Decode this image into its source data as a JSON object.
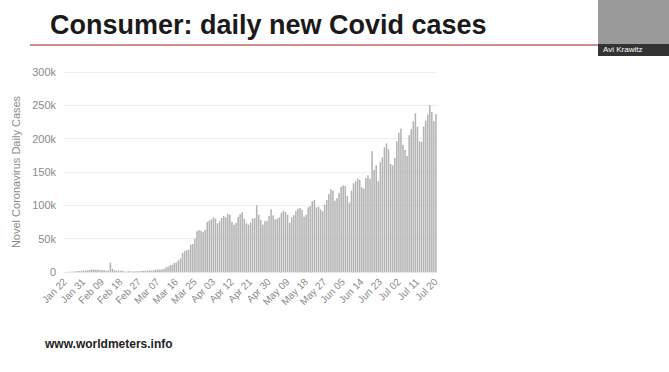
{
  "chart_data": {
    "type": "bar",
    "title": "Consumer: daily new Covid cases",
    "y_label": "Novel Coronavirus Daily Cases",
    "source": "www.worldmeters.info",
    "speaker": "Avi Krawitz",
    "color": "#b3b3b3",
    "grid": true,
    "ylim": [
      0,
      300000
    ],
    "yticks": [
      0,
      {
        "value": 50000,
        "label": "50k"
      },
      {
        "value": 100000,
        "label": "100k"
      },
      {
        "value": 150000,
        "label": "150k"
      },
      {
        "value": 200000,
        "label": "200k"
      },
      {
        "value": 250000,
        "label": "250k"
      },
      {
        "value": 300000,
        "label": "300k"
      }
    ],
    "categories": [
      "Jan 22",
      null,
      null,
      null,
      null,
      null,
      null,
      null,
      null,
      "Jan 31",
      null,
      null,
      null,
      null,
      null,
      null,
      null,
      null,
      "Feb 09",
      null,
      null,
      null,
      null,
      null,
      null,
      null,
      null,
      "Feb 18",
      null,
      null,
      null,
      null,
      null,
      null,
      null,
      null,
      "Feb 27",
      null,
      null,
      null,
      null,
      null,
      null,
      null,
      null,
      "Mar 07",
      null,
      null,
      null,
      null,
      null,
      null,
      null,
      null,
      "Mar 16",
      null,
      null,
      null,
      null,
      null,
      null,
      null,
      null,
      "Mar 25",
      null,
      null,
      null,
      null,
      null,
      null,
      null,
      null,
      "Apr 03",
      null,
      null,
      null,
      null,
      null,
      null,
      null,
      null,
      "Apr 12",
      null,
      null,
      null,
      null,
      null,
      null,
      null,
      null,
      "Apr 21",
      null,
      null,
      null,
      null,
      null,
      null,
      null,
      null,
      "Apr 30",
      null,
      null,
      null,
      null,
      null,
      null,
      null,
      null,
      "May 09",
      null,
      null,
      null,
      null,
      null,
      null,
      null,
      null,
      "May 18",
      null,
      null,
      null,
      null,
      null,
      null,
      null,
      null,
      "May 27",
      null,
      null,
      null,
      null,
      null,
      null,
      null,
      null,
      "Jun 05",
      null,
      null,
      null,
      null,
      null,
      null,
      null,
      null,
      "Jun 14",
      null,
      null,
      null,
      null,
      null,
      null,
      null,
      null,
      "Jun 23",
      null,
      null,
      null,
      null,
      null,
      null,
      null,
      null,
      "Jul 02",
      null,
      null,
      null,
      null,
      null,
      null,
      null,
      null,
      "Jul 11",
      null,
      null,
      null,
      null,
      null,
      null,
      null,
      null,
      "Jul 20"
    ],
    "values": [
      0,
      100,
      250,
      450,
      700,
      800,
      1500,
      1700,
      2000,
      2000,
      2100,
      2600,
      3200,
      3900,
      3700,
      3200,
      3400,
      2700,
      3000,
      2500,
      2100,
      2000,
      14000,
      5000,
      2600,
      2100,
      2000,
      1900,
      1800,
      500,
      900,
      1000,
      600,
      700,
      900,
      1000,
      1300,
      1400,
      1800,
      2000,
      1900,
      2300,
      2200,
      2800,
      3500,
      3900,
      3700,
      4100,
      4600,
      7300,
      7700,
      10500,
      10800,
      13600,
      14000,
      17200,
      20300,
      28500,
      31300,
      32800,
      33600,
      41000,
      42000,
      50000,
      61000,
      63000,
      62000,
      60000,
      63000,
      75000,
      77000,
      79000,
      82000,
      80000,
      73000,
      76000,
      81000,
      84000,
      82000,
      87000,
      86000,
      75000,
      71000,
      74000,
      83000,
      87000,
      90000,
      80000,
      73000,
      71000,
      74000,
      80000,
      81000,
      100000,
      86000,
      78000,
      71000,
      76000,
      77000,
      84000,
      94000,
      85000,
      79000,
      80000,
      82000,
      89000,
      92000,
      90000,
      86000,
      74000,
      82000,
      85000,
      91000,
      95000,
      96000,
      93000,
      83000,
      86000,
      97000,
      99000,
      106000,
      108000,
      97000,
      98000,
      94000,
      91000,
      101000,
      108000,
      117000,
      124000,
      122000,
      107000,
      111000,
      119000,
      128000,
      130000,
      129000,
      114000,
      104000,
      122000,
      133000,
      136000,
      140000,
      138000,
      127000,
      125000,
      141000,
      145000,
      140000,
      181000,
      153000,
      160000,
      136000,
      165000,
      172000,
      187000,
      193000,
      184000,
      162000,
      160000,
      171000,
      196000,
      209000,
      215000,
      191000,
      183000,
      174000,
      205000,
      214000,
      226000,
      238000,
      218000,
      196000,
      195000,
      218000,
      227000,
      236000,
      250000,
      240000,
      226000,
      237000
    ]
  }
}
